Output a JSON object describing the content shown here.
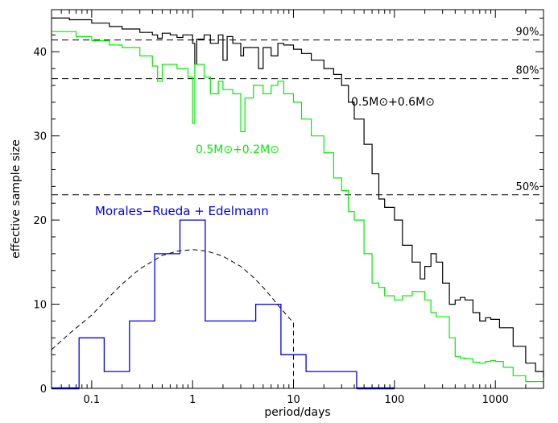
{
  "chart_data": {
    "type": "line",
    "xlabel": "period/days",
    "ylabel": "effective sample size",
    "xscale": "log",
    "xlim": [
      0.04,
      3000
    ],
    "ylim": [
      0,
      45
    ],
    "x_ticks": [
      {
        "value": 0.1,
        "label": "0.1"
      },
      {
        "value": 1,
        "label": "1"
      },
      {
        "value": 10,
        "label": "10"
      },
      {
        "value": 100,
        "label": "100"
      },
      {
        "value": 1000,
        "label": "1000"
      }
    ],
    "y_ticks": [
      {
        "value": 0,
        "label": "0"
      },
      {
        "value": 10,
        "label": "10"
      },
      {
        "value": 20,
        "label": "20"
      },
      {
        "value": 30,
        "label": "30"
      },
      {
        "value": 40,
        "label": "40"
      }
    ],
    "hlines": [
      {
        "y": 41.4,
        "label": "90%"
      },
      {
        "y": 36.8,
        "label": "80%"
      },
      {
        "y": 23.0,
        "label": "50%"
      }
    ],
    "series": [
      {
        "name": "0.5M⊙+0.6M⊙",
        "color": "#000000",
        "style": "step",
        "points": [
          [
            0.04,
            44.0
          ],
          [
            0.06,
            43.8
          ],
          [
            0.1,
            43.4
          ],
          [
            0.15,
            43.0
          ],
          [
            0.2,
            42.7
          ],
          [
            0.3,
            42.3
          ],
          [
            0.4,
            42.0
          ],
          [
            0.45,
            41.6
          ],
          [
            0.5,
            42.2
          ],
          [
            0.6,
            42.0
          ],
          [
            0.7,
            41.7
          ],
          [
            0.8,
            42.0
          ],
          [
            1.0,
            41.0
          ],
          [
            1.05,
            38.5
          ],
          [
            1.1,
            41.5
          ],
          [
            1.3,
            42.0
          ],
          [
            1.5,
            41.0
          ],
          [
            1.8,
            42.0
          ],
          [
            2.0,
            39.0
          ],
          [
            2.2,
            41.8
          ],
          [
            2.5,
            41.0
          ],
          [
            3.0,
            39.5
          ],
          [
            3.2,
            40.5
          ],
          [
            4.0,
            40.5
          ],
          [
            4.5,
            38.0
          ],
          [
            5.0,
            40.5
          ],
          [
            6.0,
            39.5
          ],
          [
            7.0,
            41.0
          ],
          [
            8.0,
            40.8
          ],
          [
            10,
            40.3
          ],
          [
            12,
            39.8
          ],
          [
            15,
            39.0
          ],
          [
            20,
            38.0
          ],
          [
            25,
            37.3
          ],
          [
            30,
            36.0
          ],
          [
            35,
            34.0
          ],
          [
            40,
            32.0
          ],
          [
            50,
            29.0
          ],
          [
            60,
            25.5
          ],
          [
            70,
            22.5
          ],
          [
            80,
            21.5
          ],
          [
            100,
            20.0
          ],
          [
            120,
            17.0
          ],
          [
            150,
            15.0
          ],
          [
            180,
            13.0
          ],
          [
            200,
            14.5
          ],
          [
            230,
            16.0
          ],
          [
            260,
            15.0
          ],
          [
            300,
            12.5
          ],
          [
            350,
            10.0
          ],
          [
            400,
            10.5
          ],
          [
            450,
            10.8
          ],
          [
            500,
            10.5
          ],
          [
            600,
            9.0
          ],
          [
            700,
            8.0
          ],
          [
            800,
            8.4
          ],
          [
            900,
            8.2
          ],
          [
            1100,
            7.2
          ],
          [
            1500,
            5.0
          ],
          [
            2000,
            3.0
          ],
          [
            2500,
            2.0
          ],
          [
            3000,
            1.3
          ]
        ]
      },
      {
        "name": "0.5M⊙+0.2M⊙",
        "color": "#00ee00",
        "style": "step",
        "points": [
          [
            0.04,
            42.4
          ],
          [
            0.07,
            41.8
          ],
          [
            0.1,
            41.3
          ],
          [
            0.15,
            40.8
          ],
          [
            0.2,
            40.5
          ],
          [
            0.3,
            39.5
          ],
          [
            0.4,
            38.3
          ],
          [
            0.45,
            36.5
          ],
          [
            0.5,
            38.5
          ],
          [
            0.7,
            38.0
          ],
          [
            0.9,
            37.0
          ],
          [
            1.0,
            31.5
          ],
          [
            1.05,
            38.5
          ],
          [
            1.3,
            37.0
          ],
          [
            1.5,
            35.0
          ],
          [
            1.8,
            36.5
          ],
          [
            2.0,
            35.5
          ],
          [
            2.5,
            35.0
          ],
          [
            3.0,
            30.5
          ],
          [
            3.3,
            34.5
          ],
          [
            4.0,
            36.0
          ],
          [
            5.0,
            35.0
          ],
          [
            6.0,
            36.0
          ],
          [
            7.0,
            36.5
          ],
          [
            8.0,
            35.0
          ],
          [
            10,
            34.0
          ],
          [
            12,
            32.0
          ],
          [
            15,
            30.0
          ],
          [
            20,
            28.0
          ],
          [
            25,
            25.0
          ],
          [
            30,
            23.5
          ],
          [
            35,
            21.0
          ],
          [
            40,
            20.0
          ],
          [
            50,
            16.0
          ],
          [
            60,
            12.5
          ],
          [
            70,
            12.0
          ],
          [
            80,
            11.0
          ],
          [
            100,
            10.5
          ],
          [
            120,
            11.0
          ],
          [
            150,
            11.5
          ],
          [
            200,
            10.5
          ],
          [
            230,
            9.0
          ],
          [
            260,
            8.5
          ],
          [
            300,
            8.5
          ],
          [
            350,
            6.0
          ],
          [
            400,
            3.8
          ],
          [
            450,
            3.6
          ],
          [
            500,
            3.5
          ],
          [
            600,
            3.1
          ],
          [
            700,
            3.0
          ],
          [
            800,
            3.2
          ],
          [
            900,
            3.3
          ],
          [
            1000,
            3.2
          ],
          [
            1200,
            2.5
          ],
          [
            1500,
            1.5
          ],
          [
            2000,
            0.8
          ],
          [
            3000,
            0.2
          ]
        ]
      }
    ],
    "histogram": {
      "label": "Morales−Rueda + Edelmann",
      "color": "#0000ee",
      "edges": [
        0.075,
        0.133,
        0.237,
        0.422,
        0.75,
        1.333,
        2.37,
        4.22,
        7.5,
        13.3,
        23.7,
        42.2
      ],
      "counts": [
        6,
        2,
        8,
        16,
        20,
        8,
        8,
        10,
        4,
        2,
        2
      ]
    },
    "model_curve": {
      "style": "dashed",
      "color": "#000000",
      "cutoff_x": 10,
      "points": [
        [
          0.04,
          4.6
        ],
        [
          0.06,
          6.5
        ],
        [
          0.1,
          8.7
        ],
        [
          0.15,
          10.9
        ],
        [
          0.2,
          12.4
        ],
        [
          0.3,
          14.2
        ],
        [
          0.5,
          15.8
        ],
        [
          0.7,
          16.3
        ],
        [
          1.0,
          16.5
        ],
        [
          1.4,
          16.3
        ],
        [
          2.0,
          15.7
        ],
        [
          3.0,
          14.5
        ],
        [
          4.0,
          13.2
        ],
        [
          5.0,
          12.0
        ],
        [
          6.0,
          10.9
        ],
        [
          7.0,
          9.9
        ],
        [
          8.0,
          9.1
        ],
        [
          9.0,
          8.4
        ],
        [
          10.0,
          7.8
        ]
      ]
    },
    "annotations": [
      {
        "text": "0.5M⊙+0.6M⊙",
        "color": "#000000"
      },
      {
        "text": "0.5M⊙+0.2M⊙",
        "color": "#00ee00"
      }
    ]
  }
}
